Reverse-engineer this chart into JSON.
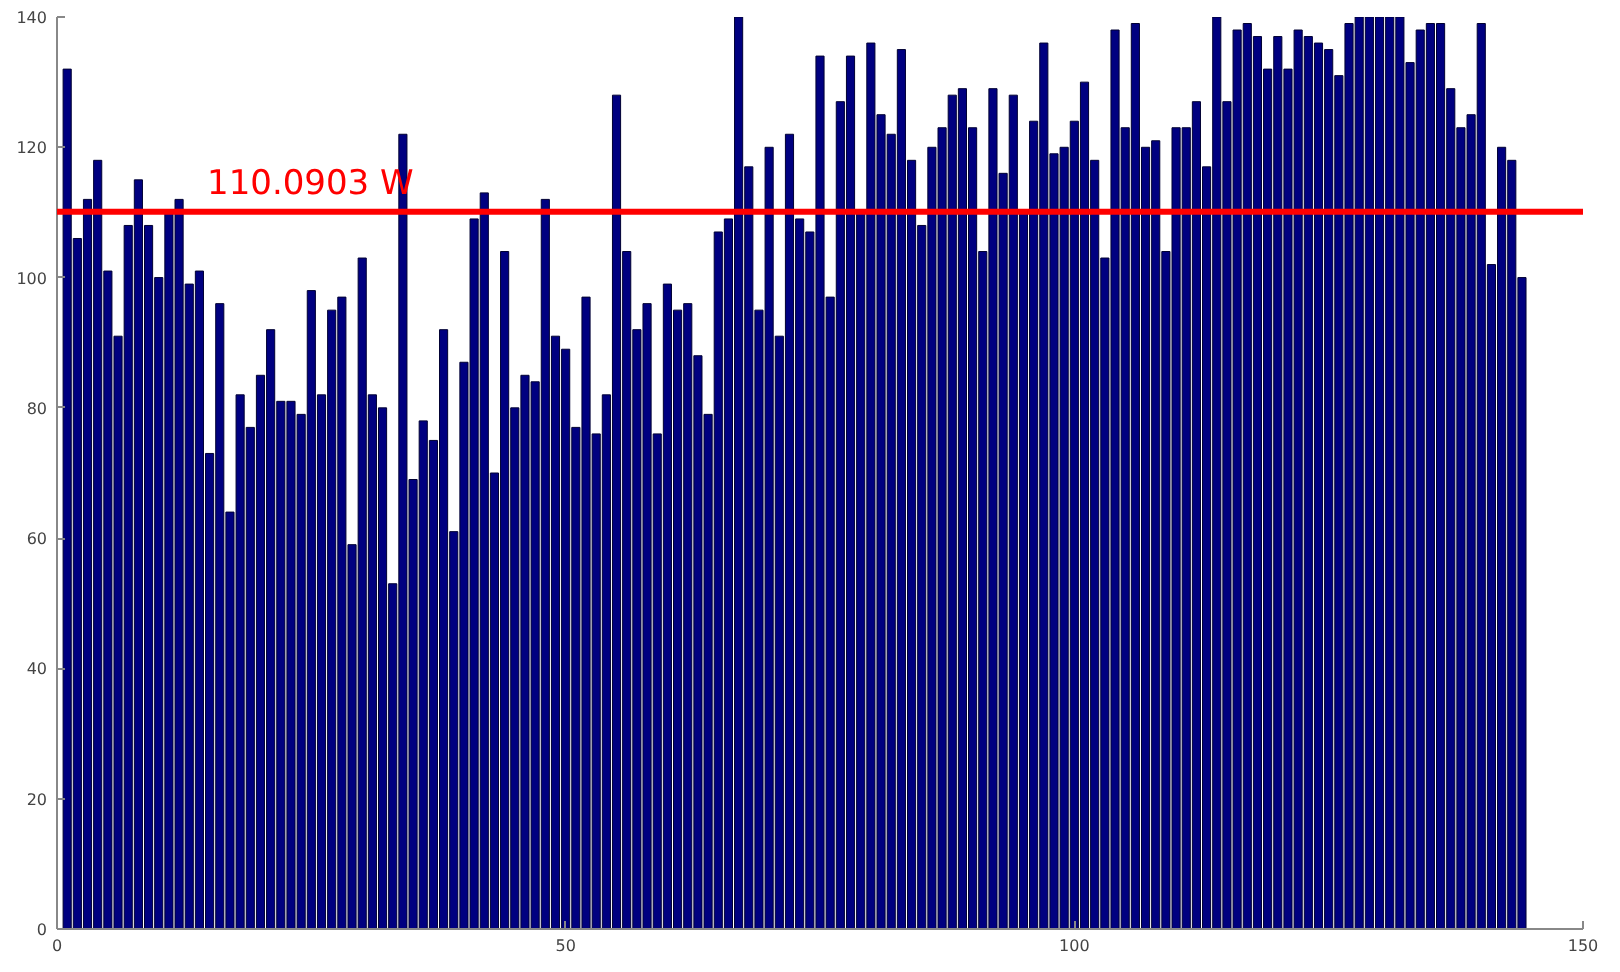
{
  "chart_data": {
    "type": "bar",
    "x": [
      1,
      2,
      3,
      4,
      5,
      6,
      7,
      8,
      9,
      10,
      11,
      12,
      13,
      14,
      15,
      16,
      17,
      18,
      19,
      20,
      21,
      22,
      23,
      24,
      25,
      26,
      27,
      28,
      29,
      30,
      31,
      32,
      33,
      34,
      35,
      36,
      37,
      38,
      39,
      40,
      41,
      42,
      43,
      44,
      45,
      46,
      47,
      48,
      49,
      50,
      51,
      52,
      53,
      54,
      55,
      56,
      57,
      58,
      59,
      60,
      61,
      62,
      63,
      64,
      65,
      66,
      67,
      68,
      69,
      70,
      71,
      72,
      73,
      74,
      75,
      76,
      77,
      78,
      79,
      80,
      81,
      82,
      83,
      84,
      85,
      86,
      87,
      88,
      89,
      90,
      91,
      92,
      93,
      94,
      95,
      96,
      97,
      98,
      99,
      100,
      101,
      102,
      103,
      104,
      105,
      106,
      107,
      108,
      109,
      110,
      111,
      112,
      113,
      114,
      115,
      116,
      117,
      118,
      119,
      120,
      121,
      122,
      123,
      124,
      125,
      126,
      127,
      128,
      129,
      130,
      131,
      132,
      133,
      134,
      135,
      136,
      137,
      138,
      139,
      140,
      141,
      142,
      143,
      144
    ],
    "series": [
      {
        "color": "#000080",
        "values": [
          132,
          106,
          112,
          118,
          101,
          91,
          108,
          115,
          108,
          100,
          110,
          112,
          99,
          101,
          73,
          96,
          64,
          82,
          77,
          85,
          92,
          81,
          81,
          79,
          98,
          82,
          95,
          97,
          59,
          103,
          82,
          80,
          53,
          122,
          69,
          78,
          75,
          92,
          61,
          87,
          109,
          113,
          70,
          104,
          80,
          85,
          84,
          112,
          91,
          89,
          77,
          97,
          76,
          82,
          128,
          104,
          92,
          96,
          76,
          99,
          95,
          96,
          88,
          79,
          107,
          109,
          140,
          117,
          95,
          120,
          91,
          122,
          109,
          107,
          134,
          97,
          127,
          134,
          110,
          136,
          125,
          122,
          135,
          118,
          108,
          120,
          123,
          128,
          129,
          123,
          104,
          129,
          116,
          128,
          110,
          124,
          136,
          119,
          120,
          124,
          130,
          118,
          103,
          138,
          123,
          139,
          120,
          121,
          104,
          123,
          123,
          127,
          117,
          140,
          127,
          138,
          139,
          137,
          132,
          137,
          132,
          138,
          137,
          136,
          135,
          131,
          139,
          140,
          140,
          140,
          140,
          140,
          133,
          138,
          139,
          139,
          129,
          123,
          125,
          139,
          102,
          120,
          118,
          100
        ]
      }
    ],
    "xlim": [
      0,
      150
    ],
    "xticks": [
      0,
      50,
      100,
      150
    ],
    "ylim": [
      0,
      140
    ],
    "yticks": [
      0,
      20,
      40,
      60,
      80,
      100,
      120,
      140
    ],
    "ref_lines": [
      {
        "axis": "y",
        "value": 110.0903,
        "label": "110.0903  W",
        "color": "#ff0000",
        "line_style": "solid"
      }
    ],
    "grid": false
  }
}
